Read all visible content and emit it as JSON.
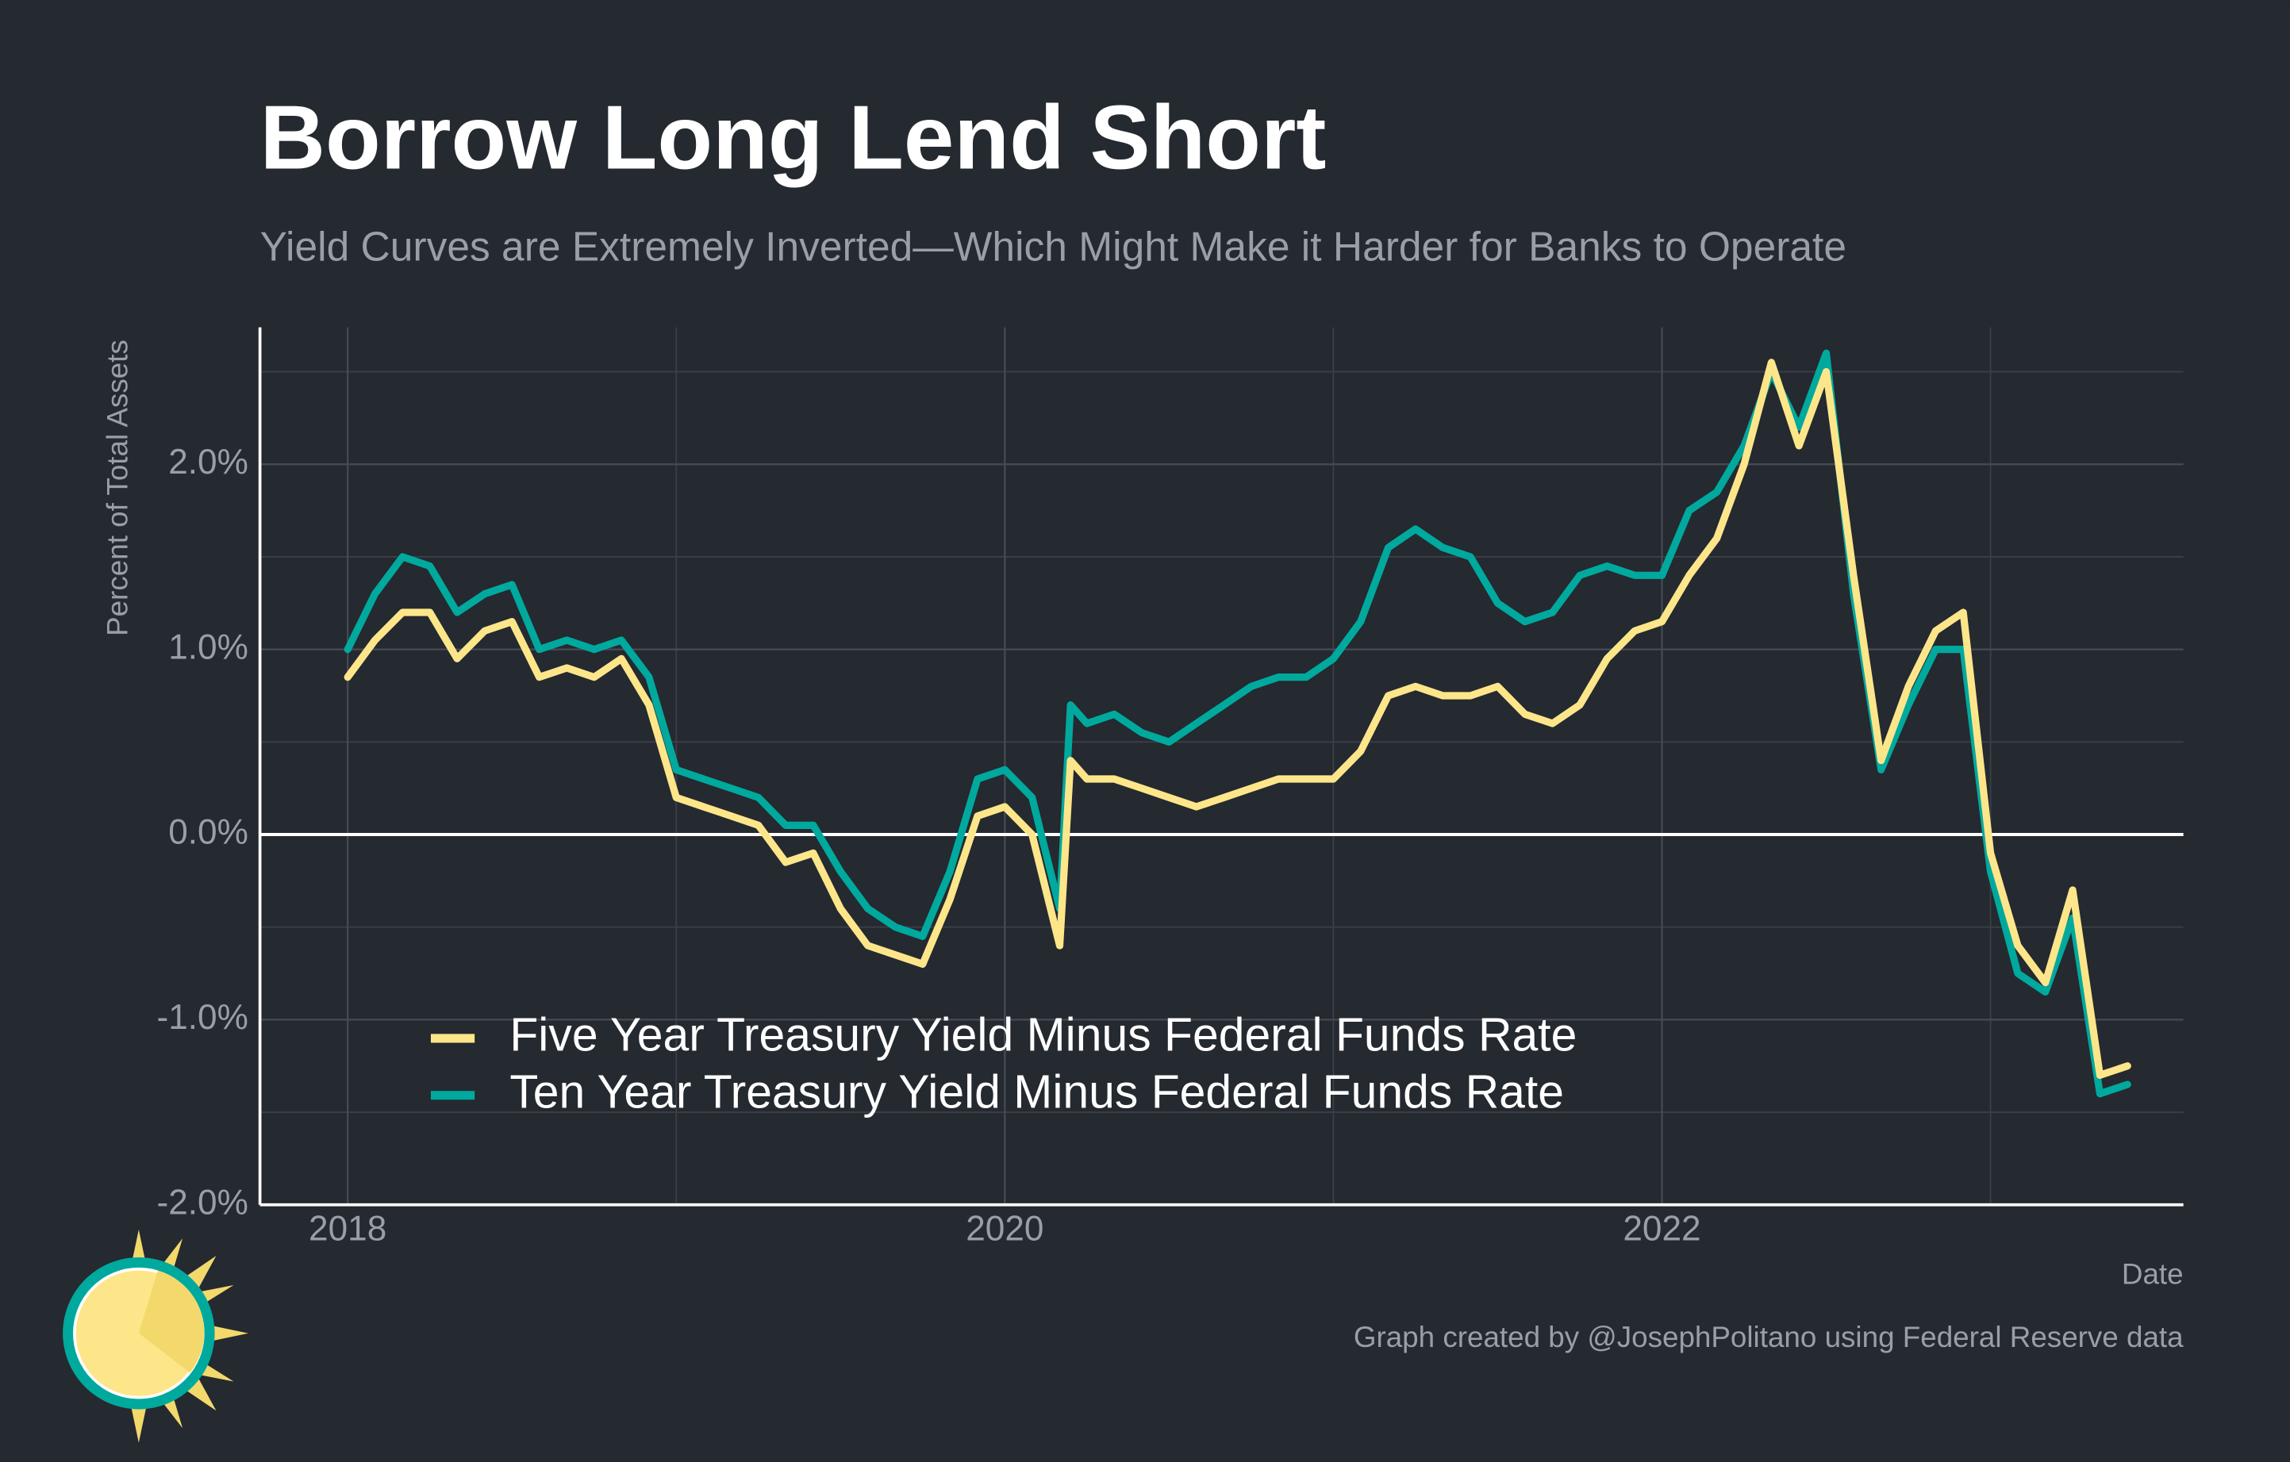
{
  "chart_data": {
    "type": "line",
    "title": "Borrow Long Lend Short",
    "subtitle": "Yield Curves are Extremely Inverted—Which Might Make it Harder for Banks to Operate",
    "ylabel": "Percent of Total Assets",
    "xlabel": "Date",
    "caption": "Graph created by @JosephPolitano using Federal Reserve data",
    "x": [
      2018.0,
      2018.083,
      2018.167,
      2018.25,
      2018.333,
      2018.417,
      2018.5,
      2018.583,
      2018.667,
      2018.75,
      2018.833,
      2018.917,
      2019.0,
      2019.083,
      2019.167,
      2019.25,
      2019.333,
      2019.417,
      2019.5,
      2019.583,
      2019.667,
      2019.75,
      2019.833,
      2019.917,
      2020.0,
      2020.083,
      2020.167,
      2020.2,
      2020.25,
      2020.333,
      2020.417,
      2020.5,
      2020.583,
      2020.667,
      2020.75,
      2020.833,
      2020.917,
      2021.0,
      2021.083,
      2021.167,
      2021.25,
      2021.333,
      2021.417,
      2021.5,
      2021.583,
      2021.667,
      2021.75,
      2021.833,
      2021.917,
      2022.0,
      2022.083,
      2022.167,
      2022.25,
      2022.333,
      2022.417,
      2022.5,
      2022.583,
      2022.667,
      2022.75,
      2022.833,
      2022.917,
      2023.0,
      2023.083,
      2023.167,
      2023.25,
      2023.333,
      2023.417
    ],
    "series": [
      {
        "name": "Ten Year Treasury Yield Minus Federal Funds Rate",
        "color": "#00a99d",
        "values": [
          1.0,
          1.3,
          1.5,
          1.45,
          1.2,
          1.3,
          1.35,
          1.0,
          1.05,
          1.0,
          1.05,
          0.85,
          0.35,
          0.3,
          0.25,
          0.2,
          0.05,
          0.05,
          -0.2,
          -0.4,
          -0.5,
          -0.55,
          -0.2,
          0.3,
          0.35,
          0.2,
          -0.4,
          0.7,
          0.6,
          0.65,
          0.55,
          0.5,
          0.6,
          0.7,
          0.8,
          0.85,
          0.85,
          0.95,
          1.15,
          1.55,
          1.65,
          1.55,
          1.5,
          1.25,
          1.15,
          1.2,
          1.4,
          1.45,
          1.4,
          1.4,
          1.75,
          1.85,
          2.1,
          2.5,
          2.2,
          2.6,
          1.3,
          0.35,
          0.7,
          1.0,
          1.0,
          -0.2,
          -0.75,
          -0.85,
          -0.45,
          -1.4,
          -1.35
        ]
      },
      {
        "name": "Five Year Treasury Yield Minus Federal Funds Rate",
        "color": "#fde68a",
        "values": [
          0.85,
          1.05,
          1.2,
          1.2,
          0.95,
          1.1,
          1.15,
          0.85,
          0.9,
          0.85,
          0.95,
          0.7,
          0.2,
          0.15,
          0.1,
          0.05,
          -0.15,
          -0.1,
          -0.4,
          -0.6,
          -0.65,
          -0.7,
          -0.35,
          0.1,
          0.15,
          0.0,
          -0.6,
          0.4,
          0.3,
          0.3,
          0.25,
          0.2,
          0.15,
          0.2,
          0.25,
          0.3,
          0.3,
          0.3,
          0.45,
          0.75,
          0.8,
          0.75,
          0.75,
          0.8,
          0.65,
          0.6,
          0.7,
          0.95,
          1.1,
          1.15,
          1.4,
          1.6,
          2.0,
          2.55,
          2.1,
          2.5,
          1.4,
          0.4,
          0.8,
          1.1,
          1.2,
          -0.1,
          -0.6,
          -0.8,
          -0.3,
          -1.3,
          -1.25
        ]
      }
    ],
    "legend_order": [
      1,
      0
    ],
    "legend": "lower left",
    "xlim": [
      2017.733,
      2023.587
    ],
    "xticks": [
      2018,
      2020,
      2022
    ],
    "x_minor_ticks": [
      2019,
      2021,
      2023
    ],
    "ylim": [
      -2.0,
      2.74
    ],
    "yticks": [
      {
        "value": -2.0,
        "label": "-2.0%"
      },
      {
        "value": -1.0,
        "label": "-1.0%"
      },
      {
        "value": 0.0,
        "label": "0.0%"
      },
      {
        "value": 1.0,
        "label": "1.0%"
      },
      {
        "value": 2.0,
        "label": "2.0%"
      }
    ],
    "y_minor_ticks": [
      -1.5,
      -0.5,
      0.5,
      1.5,
      2.5
    ],
    "reference_line": 0,
    "grid": true
  }
}
